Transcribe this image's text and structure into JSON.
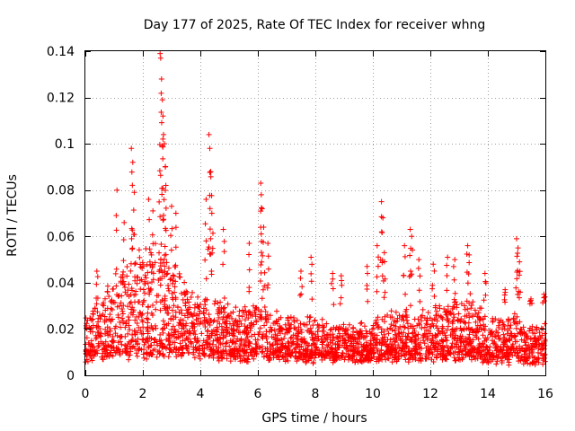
{
  "chart_data": {
    "type": "scatter",
    "title": "Day 177 of 2025, Rate Of TEC Index for receiver whng",
    "xlabel": "GPS time / hours",
    "ylabel": "ROTI / TECUs",
    "xlim": [
      0,
      16
    ],
    "ylim": [
      0,
      0.14
    ],
    "x_ticks": [
      "0",
      "2",
      "4",
      "6",
      "8",
      "10",
      "12",
      "14",
      "16"
    ],
    "y_ticks": [
      "0",
      "0.02",
      "0.04",
      "0.06",
      "0.08",
      "0.1",
      "0.12",
      "0.14"
    ],
    "grid": true,
    "marker": "+",
    "color": "#ff0000",
    "envelope": {
      "x": [
        0.0,
        0.5,
        1.0,
        1.5,
        2.0,
        2.5,
        3.0,
        3.5,
        4.0,
        4.5,
        5.0,
        5.5,
        6.0,
        6.5,
        7.0,
        7.5,
        8.0,
        8.5,
        9.0,
        9.5,
        10.0,
        10.5,
        11.0,
        11.5,
        12.0,
        12.5,
        13.0,
        13.5,
        14.0,
        14.5,
        15.0,
        15.5,
        16.0
      ],
      "low": [
        0.009,
        0.011,
        0.011,
        0.012,
        0.012,
        0.012,
        0.012,
        0.011,
        0.011,
        0.011,
        0.01,
        0.01,
        0.01,
        0.01,
        0.01,
        0.009,
        0.009,
        0.009,
        0.009,
        0.009,
        0.009,
        0.01,
        0.01,
        0.01,
        0.01,
        0.01,
        0.01,
        0.01,
        0.009,
        0.008,
        0.008,
        0.007,
        0.007
      ],
      "high": [
        0.025,
        0.036,
        0.045,
        0.052,
        0.056,
        0.058,
        0.052,
        0.04,
        0.036,
        0.035,
        0.032,
        0.03,
        0.032,
        0.03,
        0.028,
        0.026,
        0.026,
        0.025,
        0.024,
        0.022,
        0.024,
        0.03,
        0.03,
        0.028,
        0.03,
        0.032,
        0.034,
        0.032,
        0.028,
        0.026,
        0.028,
        0.022,
        0.024
      ]
    },
    "peaks": [
      {
        "x": 0.4,
        "y": 0.045
      },
      {
        "x": 1.1,
        "y": 0.08
      },
      {
        "x": 1.35,
        "y": 0.066
      },
      {
        "x": 1.6,
        "y": 0.098
      },
      {
        "x": 1.65,
        "y": 0.092
      },
      {
        "x": 1.7,
        "y": 0.079
      },
      {
        "x": 2.2,
        "y": 0.076
      },
      {
        "x": 2.35,
        "y": 0.071
      },
      {
        "x": 2.6,
        "y": 0.139
      },
      {
        "x": 2.62,
        "y": 0.137
      },
      {
        "x": 2.65,
        "y": 0.128
      },
      {
        "x": 2.68,
        "y": 0.119
      },
      {
        "x": 2.7,
        "y": 0.112
      },
      {
        "x": 2.72,
        "y": 0.104
      },
      {
        "x": 2.75,
        "y": 0.1
      },
      {
        "x": 2.78,
        "y": 0.09
      },
      {
        "x": 2.8,
        "y": 0.082
      },
      {
        "x": 3.0,
        "y": 0.073
      },
      {
        "x": 3.15,
        "y": 0.07
      },
      {
        "x": 4.2,
        "y": 0.076
      },
      {
        "x": 4.3,
        "y": 0.104
      },
      {
        "x": 4.33,
        "y": 0.098
      },
      {
        "x": 4.36,
        "y": 0.088
      },
      {
        "x": 4.4,
        "y": 0.07
      },
      {
        "x": 4.8,
        "y": 0.063
      },
      {
        "x": 5.7,
        "y": 0.057
      },
      {
        "x": 6.1,
        "y": 0.083
      },
      {
        "x": 6.12,
        "y": 0.078
      },
      {
        "x": 6.15,
        "y": 0.072
      },
      {
        "x": 6.2,
        "y": 0.064
      },
      {
        "x": 6.35,
        "y": 0.057
      },
      {
        "x": 7.5,
        "y": 0.045
      },
      {
        "x": 7.85,
        "y": 0.051
      },
      {
        "x": 8.6,
        "y": 0.044
      },
      {
        "x": 8.9,
        "y": 0.043
      },
      {
        "x": 9.8,
        "y": 0.047
      },
      {
        "x": 10.15,
        "y": 0.056
      },
      {
        "x": 10.3,
        "y": 0.075
      },
      {
        "x": 10.35,
        "y": 0.068
      },
      {
        "x": 10.4,
        "y": 0.053
      },
      {
        "x": 11.1,
        "y": 0.056
      },
      {
        "x": 11.3,
        "y": 0.063
      },
      {
        "x": 11.35,
        "y": 0.06
      },
      {
        "x": 11.6,
        "y": 0.05
      },
      {
        "x": 12.1,
        "y": 0.048
      },
      {
        "x": 12.6,
        "y": 0.051
      },
      {
        "x": 12.85,
        "y": 0.05
      },
      {
        "x": 13.3,
        "y": 0.056
      },
      {
        "x": 13.35,
        "y": 0.052
      },
      {
        "x": 13.9,
        "y": 0.044
      },
      {
        "x": 14.6,
        "y": 0.037
      },
      {
        "x": 15.0,
        "y": 0.059
      },
      {
        "x": 15.05,
        "y": 0.055
      },
      {
        "x": 15.1,
        "y": 0.049
      },
      {
        "x": 15.5,
        "y": 0.033
      },
      {
        "x": 15.95,
        "y": 0.035
      }
    ]
  }
}
